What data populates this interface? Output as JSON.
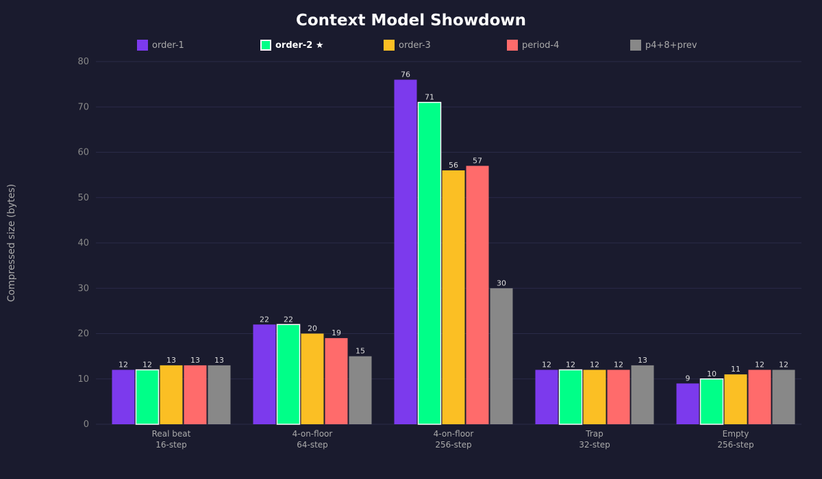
{
  "chart_data": {
    "type": "bar",
    "title": "Context Model Showdown",
    "ylabel": "Compressed size (bytes)",
    "xlabel": "",
    "ylim": [
      0,
      80
    ],
    "yticks": [
      0,
      10,
      20,
      30,
      40,
      50,
      60,
      70,
      80
    ],
    "grid": true,
    "legend_position": "top",
    "categories": [
      [
        "Real beat",
        "16-step"
      ],
      [
        "4-on-floor",
        "64-step"
      ],
      [
        "4-on-floor",
        "256-step"
      ],
      [
        "Trap",
        "32-step"
      ],
      [
        "Empty",
        "256-step"
      ]
    ],
    "series": [
      {
        "name": "order-1",
        "color": "#7c3aed",
        "values": [
          12,
          22,
          76,
          12,
          9
        ]
      },
      {
        "name": "order-2 ★",
        "color": "#00ff88",
        "highlight": true,
        "values": [
          12,
          22,
          71,
          12,
          10
        ]
      },
      {
        "name": "order-3",
        "color": "#fbbf24",
        "values": [
          13,
          20,
          56,
          12,
          11
        ]
      },
      {
        "name": "period-4",
        "color": "#ff6b6b",
        "values": [
          13,
          19,
          57,
          12,
          12
        ]
      },
      {
        "name": "p4+8+prev",
        "color": "#888888",
        "values": [
          13,
          15,
          30,
          13,
          12
        ]
      }
    ]
  }
}
